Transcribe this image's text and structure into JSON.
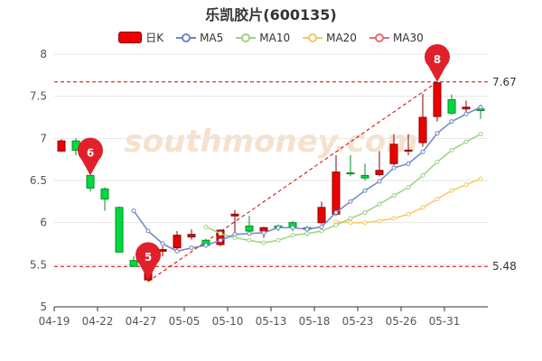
{
  "title": "乐凯胶片(600135)",
  "legend": {
    "k_label": "日K",
    "items": [
      {
        "label": "MA5",
        "color": "#7085c7"
      },
      {
        "label": "MA10",
        "color": "#9fd27f"
      },
      {
        "label": "MA20",
        "color": "#f6c85f"
      },
      {
        "label": "MA30",
        "color": "#ec6b6b"
      }
    ]
  },
  "watermark": "southmoney.com",
  "colors": {
    "up": "#ec0000",
    "down": "#00da3c",
    "up_border": "#8a0000",
    "down_border": "#008f28",
    "guide": "#d00000",
    "marker": "#e0202a"
  },
  "chart_data": {
    "type": "candlestick",
    "ylim": [
      5,
      8
    ],
    "yticks": [
      5,
      5.5,
      6,
      6.5,
      7,
      7.5,
      8
    ],
    "xtick_labels": [
      "04-19",
      "04-22",
      "04-27",
      "05-05",
      "05-10",
      "05-13",
      "05-18",
      "05-23",
      "05-26",
      "05-31"
    ],
    "xtick_index": [
      0,
      3,
      6,
      9,
      12,
      15,
      18,
      21,
      24,
      27
    ],
    "candles": [
      {
        "o": 6.85,
        "h": 6.99,
        "l": 6.84,
        "c": 6.97
      },
      {
        "o": 6.97,
        "h": 7.0,
        "l": 6.8,
        "c": 6.86
      },
      {
        "o": 6.56,
        "h": 6.61,
        "l": 6.37,
        "c": 6.41
      },
      {
        "o": 6.4,
        "h": 6.42,
        "l": 6.14,
        "c": 6.28
      },
      {
        "o": 6.18,
        "h": 6.19,
        "l": 5.65,
        "c": 5.65
      },
      {
        "o": 5.55,
        "h": 5.6,
        "l": 5.48,
        "c": 5.48
      },
      {
        "o": 5.32,
        "h": 5.65,
        "l": 5.3,
        "c": 5.55
      },
      {
        "o": 5.66,
        "h": 5.72,
        "l": 5.6,
        "c": 5.68
      },
      {
        "o": 5.7,
        "h": 5.9,
        "l": 5.66,
        "c": 5.85
      },
      {
        "o": 5.83,
        "h": 5.92,
        "l": 5.8,
        "c": 5.86
      },
      {
        "o": 5.79,
        "h": 5.81,
        "l": 5.7,
        "c": 5.73
      },
      {
        "o": 5.74,
        "h": 5.92,
        "l": 5.72,
        "c": 5.91
      },
      {
        "o": 6.08,
        "h": 6.15,
        "l": 5.88,
        "c": 6.1
      },
      {
        "o": 5.96,
        "h": 6.08,
        "l": 5.87,
        "c": 5.9
      },
      {
        "o": 5.9,
        "h": 5.95,
        "l": 5.82,
        "c": 5.94
      },
      {
        "o": 5.96,
        "h": 5.98,
        "l": 5.9,
        "c": 5.94
      },
      {
        "o": 6.0,
        "h": 6.02,
        "l": 5.9,
        "c": 5.94
      },
      {
        "o": 5.94,
        "h": 5.96,
        "l": 5.84,
        "c": 5.92
      },
      {
        "o": 6.0,
        "h": 6.25,
        "l": 5.98,
        "c": 6.18
      },
      {
        "o": 6.1,
        "h": 6.8,
        "l": 6.08,
        "c": 6.6
      },
      {
        "o": 6.59,
        "h": 6.8,
        "l": 6.55,
        "c": 6.58
      },
      {
        "o": 6.56,
        "h": 6.7,
        "l": 6.5,
        "c": 6.53
      },
      {
        "o": 6.57,
        "h": 6.85,
        "l": 6.55,
        "c": 6.62
      },
      {
        "o": 6.7,
        "h": 7.05,
        "l": 6.68,
        "c": 6.93
      },
      {
        "o": 6.86,
        "h": 7.05,
        "l": 6.8,
        "c": 6.86
      },
      {
        "o": 6.95,
        "h": 7.53,
        "l": 6.9,
        "c": 7.25
      },
      {
        "o": 7.26,
        "h": 7.67,
        "l": 7.2,
        "c": 7.66
      },
      {
        "o": 7.46,
        "h": 7.52,
        "l": 7.28,
        "c": 7.3
      },
      {
        "o": 7.35,
        "h": 7.45,
        "l": 7.28,
        "c": 7.37
      },
      {
        "o": 7.35,
        "h": 7.4,
        "l": 7.23,
        "c": 7.33
      }
    ],
    "ma5": [
      null,
      null,
      null,
      null,
      null,
      6.14,
      5.9,
      5.75,
      5.66,
      5.7,
      5.73,
      5.79,
      5.86,
      5.87,
      5.88,
      5.94,
      5.94,
      5.92,
      5.95,
      6.12,
      6.25,
      6.38,
      6.49,
      6.65,
      6.7,
      6.84,
      7.06,
      7.2,
      7.29,
      7.37
    ],
    "ma10": [
      null,
      null,
      null,
      null,
      null,
      null,
      null,
      null,
      null,
      null,
      5.95,
      5.87,
      5.82,
      5.79,
      5.76,
      5.79,
      5.85,
      5.87,
      5.9,
      5.97,
      6.05,
      6.12,
      6.22,
      6.32,
      6.42,
      6.56,
      6.72,
      6.86,
      6.96,
      7.05
    ],
    "ma20": [
      null,
      null,
      null,
      null,
      null,
      null,
      null,
      null,
      null,
      null,
      null,
      null,
      null,
      null,
      null,
      null,
      null,
      null,
      null,
      6.01,
      6.0,
      6.0,
      6.02,
      6.05,
      6.1,
      6.18,
      6.28,
      6.38,
      6.45,
      6.52
    ],
    "ma30": [],
    "guides": [
      {
        "value": 7.67,
        "label": "7.67"
      },
      {
        "value": 5.48,
        "label": "5.48"
      }
    ],
    "trend": {
      "from": {
        "index": 6,
        "value": 5.3
      },
      "to": {
        "index": 26,
        "value": 7.67
      }
    },
    "markers": [
      {
        "index": 2,
        "value": 6.56,
        "label": "6"
      },
      {
        "index": 6,
        "value": 5.32,
        "label": "5"
      },
      {
        "index": 26,
        "value": 7.67,
        "label": "8"
      }
    ]
  }
}
